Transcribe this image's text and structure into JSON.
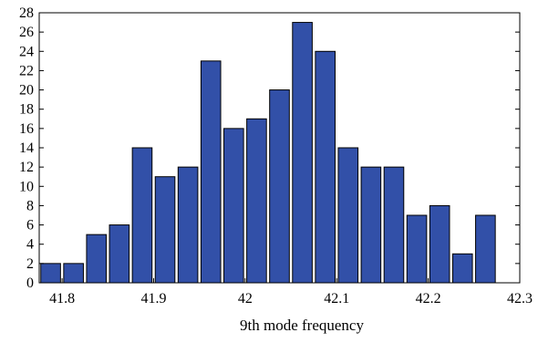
{
  "chart_data": {
    "type": "bar",
    "title": "",
    "xlabel": "9th mode frequency",
    "ylabel": "",
    "bin_width": 0.025,
    "bin_centers": [
      41.7875,
      41.8125,
      41.8375,
      41.8625,
      41.8875,
      41.9125,
      41.9375,
      41.9625,
      41.9875,
      42.0125,
      42.0375,
      42.0625,
      42.0875,
      42.1125,
      42.1375,
      42.1625,
      42.1875,
      42.2125,
      42.2375,
      42.2625
    ],
    "values": [
      2,
      2,
      5,
      6,
      14,
      11,
      12,
      23,
      16,
      17,
      20,
      27,
      24,
      14,
      12,
      12,
      7,
      8,
      3,
      7
    ],
    "xlim": [
      41.775,
      42.3
    ],
    "ylim": [
      0,
      28
    ],
    "x_ticks": [
      41.8,
      41.9,
      42,
      42.1,
      42.2,
      42.3
    ],
    "x_tick_labels": [
      "41.8",
      "41.9",
      "42",
      "42.1",
      "42.2",
      "42.3"
    ],
    "y_ticks": [
      0,
      2,
      4,
      6,
      8,
      10,
      12,
      14,
      16,
      18,
      20,
      22,
      24,
      26,
      28
    ],
    "y_tick_labels": [
      "0",
      "2",
      "4",
      "6",
      "8",
      "10",
      "12",
      "14",
      "16",
      "18",
      "20",
      "22",
      "24",
      "26",
      "28"
    ],
    "bar_color": "#3250a8",
    "grid": false,
    "legend": "none"
  }
}
